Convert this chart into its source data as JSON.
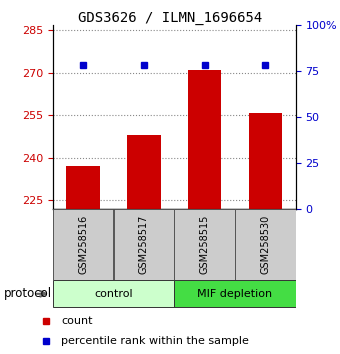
{
  "title": "GDS3626 / ILMN_1696654",
  "samples": [
    "GSM258516",
    "GSM258517",
    "GSM258515",
    "GSM258530"
  ],
  "bar_values": [
    237.0,
    248.0,
    271.0,
    256.0
  ],
  "percentile_values": [
    78.0,
    78.0,
    78.0,
    78.0
  ],
  "bar_color": "#cc0000",
  "percentile_color": "#0000cc",
  "ylim_left": [
    222,
    287
  ],
  "yticks_left": [
    225,
    240,
    255,
    270,
    285
  ],
  "ylim_right": [
    0,
    100
  ],
  "yticks_right": [
    0,
    25,
    50,
    75,
    100
  ],
  "ytick_labels_right": [
    "0",
    "25",
    "50",
    "75",
    "100%"
  ],
  "groups": [
    {
      "label": "control",
      "samples": [
        0,
        1
      ],
      "color": "#ccffcc"
    },
    {
      "label": "MIF depletion",
      "samples": [
        2,
        3
      ],
      "color": "#44dd44"
    }
  ],
  "protocol_label": "protocol",
  "bar_base": 222,
  "grid_color": "#888888",
  "sample_box_color": "#cccccc",
  "sample_box_edge": "#555555",
  "bar_width": 0.55,
  "title_fontsize": 10,
  "tick_fontsize": 8,
  "label_fontsize": 8.5
}
